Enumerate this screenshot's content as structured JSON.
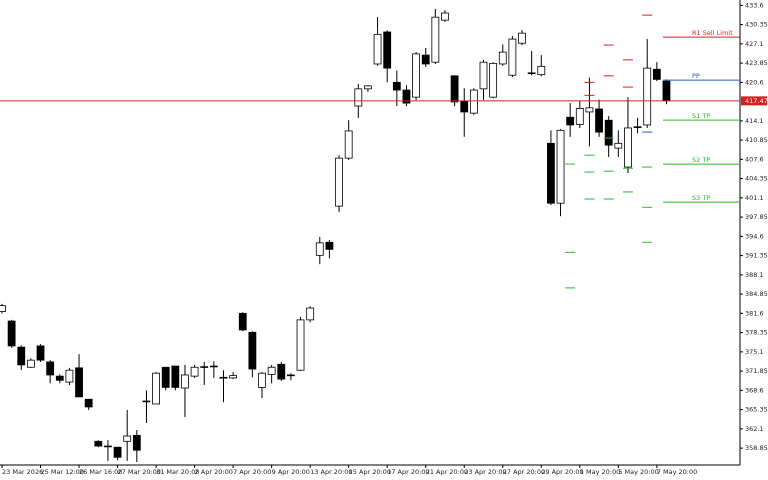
{
  "chart_data": {
    "type": "candlestick",
    "categories": [
      "23 Mar 2026",
      null,
      null,
      null,
      "25 Mar 12:00",
      null,
      null,
      null,
      "26 Mar 16:00",
      null,
      null,
      null,
      "27 Mar 20:00",
      null,
      null,
      null,
      "31 Mar 20:00",
      null,
      null,
      null,
      "2 Apr 20:00",
      null,
      null,
      null,
      "7 Apr 20:00",
      null,
      null,
      null,
      "9 Apr 20:00",
      null,
      null,
      null,
      "13 Apr 20:00",
      null,
      null,
      null,
      "15 Apr 20:00",
      null,
      null,
      null,
      "17 Apr 20:00",
      null,
      null,
      null,
      "21 Apr 20:00",
      null,
      null,
      null,
      "23 Apr 20:00",
      null,
      null,
      null,
      "27 Apr 20:00",
      null,
      null,
      null,
      "29 Apr 20:00",
      null,
      null,
      null,
      "1 May 20:00",
      null,
      null,
      null,
      "5 May 20:00",
      null,
      null,
      null,
      "7 May 20:00",
      null
    ],
    "open": [
      381.9,
      380.3,
      375.9,
      372.5,
      376.1,
      373.4,
      371.0,
      370.0,
      372.4,
      367.1,
      360.0,
      359.2,
      359.0,
      360.0,
      361.0,
      366.8,
      366.3,
      372.5,
      372.7,
      369.0,
      371.0,
      372.5,
      372.7,
      370.8,
      370.7,
      381.6,
      378.4,
      369.1,
      371.3,
      373.0,
      371.2,
      372.0,
      380.5,
      391.4,
      393.6,
      399.7,
      407.8,
      416.6,
      419.5,
      423.7,
      429.1,
      420.6,
      419.3,
      418.1,
      425.2,
      424.0,
      431.1,
      421.7,
      417.4,
      415.4,
      419.5,
      418.1,
      423.7,
      421.8,
      427.2,
      422.2,
      421.9,
      410.3,
      400.2,
      414.7,
      413.5,
      415.6,
      416.1,
      414.2,
      409.5,
      406.3,
      413.0,
      413.4,
      422.8,
      420.8
    ],
    "high": [
      383.2,
      380.5,
      376.2,
      374.0,
      376.4,
      373.7,
      371.3,
      372.4,
      374.7,
      367.1,
      360.2,
      360.2,
      359.0,
      365.3,
      361.9,
      368.6,
      371.7,
      372.5,
      372.7,
      372.9,
      372.9,
      373.4,
      373.5,
      372.0,
      371.7,
      381.8,
      378.6,
      371.7,
      372.9,
      373.4,
      371.5,
      381.0,
      382.8,
      394.5,
      394.0,
      408.3,
      414.2,
      420.3,
      420.1,
      431.6,
      429.4,
      422.6,
      420.1,
      425.7,
      426.4,
      433.0,
      432.8,
      421.8,
      419.6,
      419.6,
      424.4,
      424.0,
      427.0,
      428.4,
      429.4,
      425.9,
      425.2,
      412.5,
      412.7,
      417.1,
      417.4,
      421.4,
      417.7,
      414.9,
      412.5,
      418.1,
      414.6,
      427.9,
      424.0,
      421.1
    ],
    "low": [
      381.6,
      375.8,
      372.0,
      372.4,
      373.4,
      369.8,
      369.8,
      369.5,
      367.5,
      365.3,
      359.0,
      356.7,
      356.8,
      356.7,
      356.5,
      363.1,
      366.3,
      368.6,
      368.6,
      364.1,
      370.7,
      369.5,
      370.7,
      366.6,
      370.5,
      378.6,
      370.8,
      367.3,
      369.8,
      370.2,
      370.3,
      371.9,
      380.1,
      389.9,
      390.9,
      398.7,
      407.5,
      414.6,
      419.0,
      423.4,
      420.6,
      416.6,
      416.6,
      417.6,
      423.2,
      423.7,
      430.8,
      416.6,
      411.4,
      415.1,
      417.6,
      417.9,
      423.4,
      421.5,
      426.9,
      421.8,
      421.6,
      399.9,
      398.0,
      411.4,
      412.9,
      409.8,
      411.4,
      408.0,
      408.0,
      405.3,
      412.0,
      412.9,
      420.8,
      416.9
    ],
    "close": [
      382.9,
      376.1,
      372.9,
      373.7,
      373.7,
      371.2,
      370.3,
      372.0,
      367.5,
      365.8,
      359.2,
      359.1,
      357.3,
      360.9,
      358.5,
      366.8,
      371.5,
      369.1,
      369.1,
      371.2,
      372.5,
      372.6,
      372.7,
      370.8,
      371.1,
      378.8,
      372.2,
      371.5,
      372.5,
      370.5,
      371.2,
      380.5,
      382.5,
      393.5,
      392.4,
      407.8,
      412.4,
      419.5,
      420.0,
      428.7,
      423.0,
      419.3,
      417.1,
      425.4,
      423.7,
      431.6,
      432.3,
      417.3,
      415.6,
      419.3,
      424.0,
      423.8,
      425.7,
      427.9,
      428.9,
      422.2,
      423.3,
      400.2,
      412.5,
      413.4,
      416.2,
      416.3,
      412.2,
      410.0,
      410.3,
      412.9,
      413.1,
      423.0,
      421.1,
      417.6
    ],
    "ylim": [
      356.0,
      434.5
    ],
    "yticks": [
      358.85,
      362.1,
      365.35,
      368.6,
      371.85,
      375.1,
      378.35,
      381.6,
      384.85,
      388.1,
      391.35,
      394.6,
      397.85,
      401.1,
      404.35,
      407.6,
      410.85,
      414.1,
      420.6,
      423.85,
      427.1,
      430.35,
      433.6
    ],
    "current_price": 417.47,
    "current_price_color": "#d42020",
    "levels": [
      {
        "name": "R1 Sell Limit",
        "value": 428.24,
        "color": "#d42020"
      },
      {
        "name": "PP",
        "value": 420.98,
        "color": "#1f5fbf"
      },
      {
        "name": "S1 TP",
        "value": 414.23,
        "color": "#2eb82e"
      },
      {
        "name": "S2 TP",
        "value": 406.8,
        "color": "#2eb82e"
      },
      {
        "name": "S3 TP",
        "value": 400.38,
        "color": "#2eb82e"
      }
    ],
    "pivot_marks": [
      {
        "x": 59,
        "value": 406.8,
        "color": "#2eb82e"
      },
      {
        "x": 59,
        "value": 391.9,
        "color": "#2eb82e"
      },
      {
        "x": 59,
        "value": 385.9,
        "color": "#2eb82e"
      },
      {
        "x": 61,
        "value": 420.6,
        "color": "#d42020"
      },
      {
        "x": 61,
        "value": 418.4,
        "color": "#d42020"
      },
      {
        "x": 61,
        "value": 408.3,
        "color": "#2eb82e"
      },
      {
        "x": 61,
        "value": 405.45,
        "color": "#2eb82e"
      },
      {
        "x": 61,
        "value": 400.9,
        "color": "#2eb82e"
      },
      {
        "x": 63,
        "value": 426.9,
        "color": "#d42020"
      },
      {
        "x": 63,
        "value": 421.7,
        "color": "#d42020"
      },
      {
        "x": 63,
        "value": 411.2,
        "color": "#2eb82e"
      },
      {
        "x": 63,
        "value": 405.6,
        "color": "#2eb82e"
      },
      {
        "x": 63,
        "value": 400.9,
        "color": "#2eb82e"
      },
      {
        "x": 65,
        "value": 424.4,
        "color": "#d42020"
      },
      {
        "x": 65,
        "value": 419.8,
        "color": "#d42020"
      },
      {
        "x": 65,
        "value": 406.1,
        "color": "#2eb82e"
      },
      {
        "x": 65,
        "value": 402.1,
        "color": "#2eb82e"
      },
      {
        "x": 67,
        "value": 431.95,
        "color": "#d42020"
      },
      {
        "x": 67,
        "value": 412.2,
        "color": "#1f5fbf"
      },
      {
        "x": 67,
        "value": 406.3,
        "color": "#2eb82e"
      },
      {
        "x": 67,
        "value": 399.5,
        "color": "#2eb82e"
      },
      {
        "x": 67,
        "value": 393.6,
        "color": "#2eb82e"
      }
    ]
  }
}
